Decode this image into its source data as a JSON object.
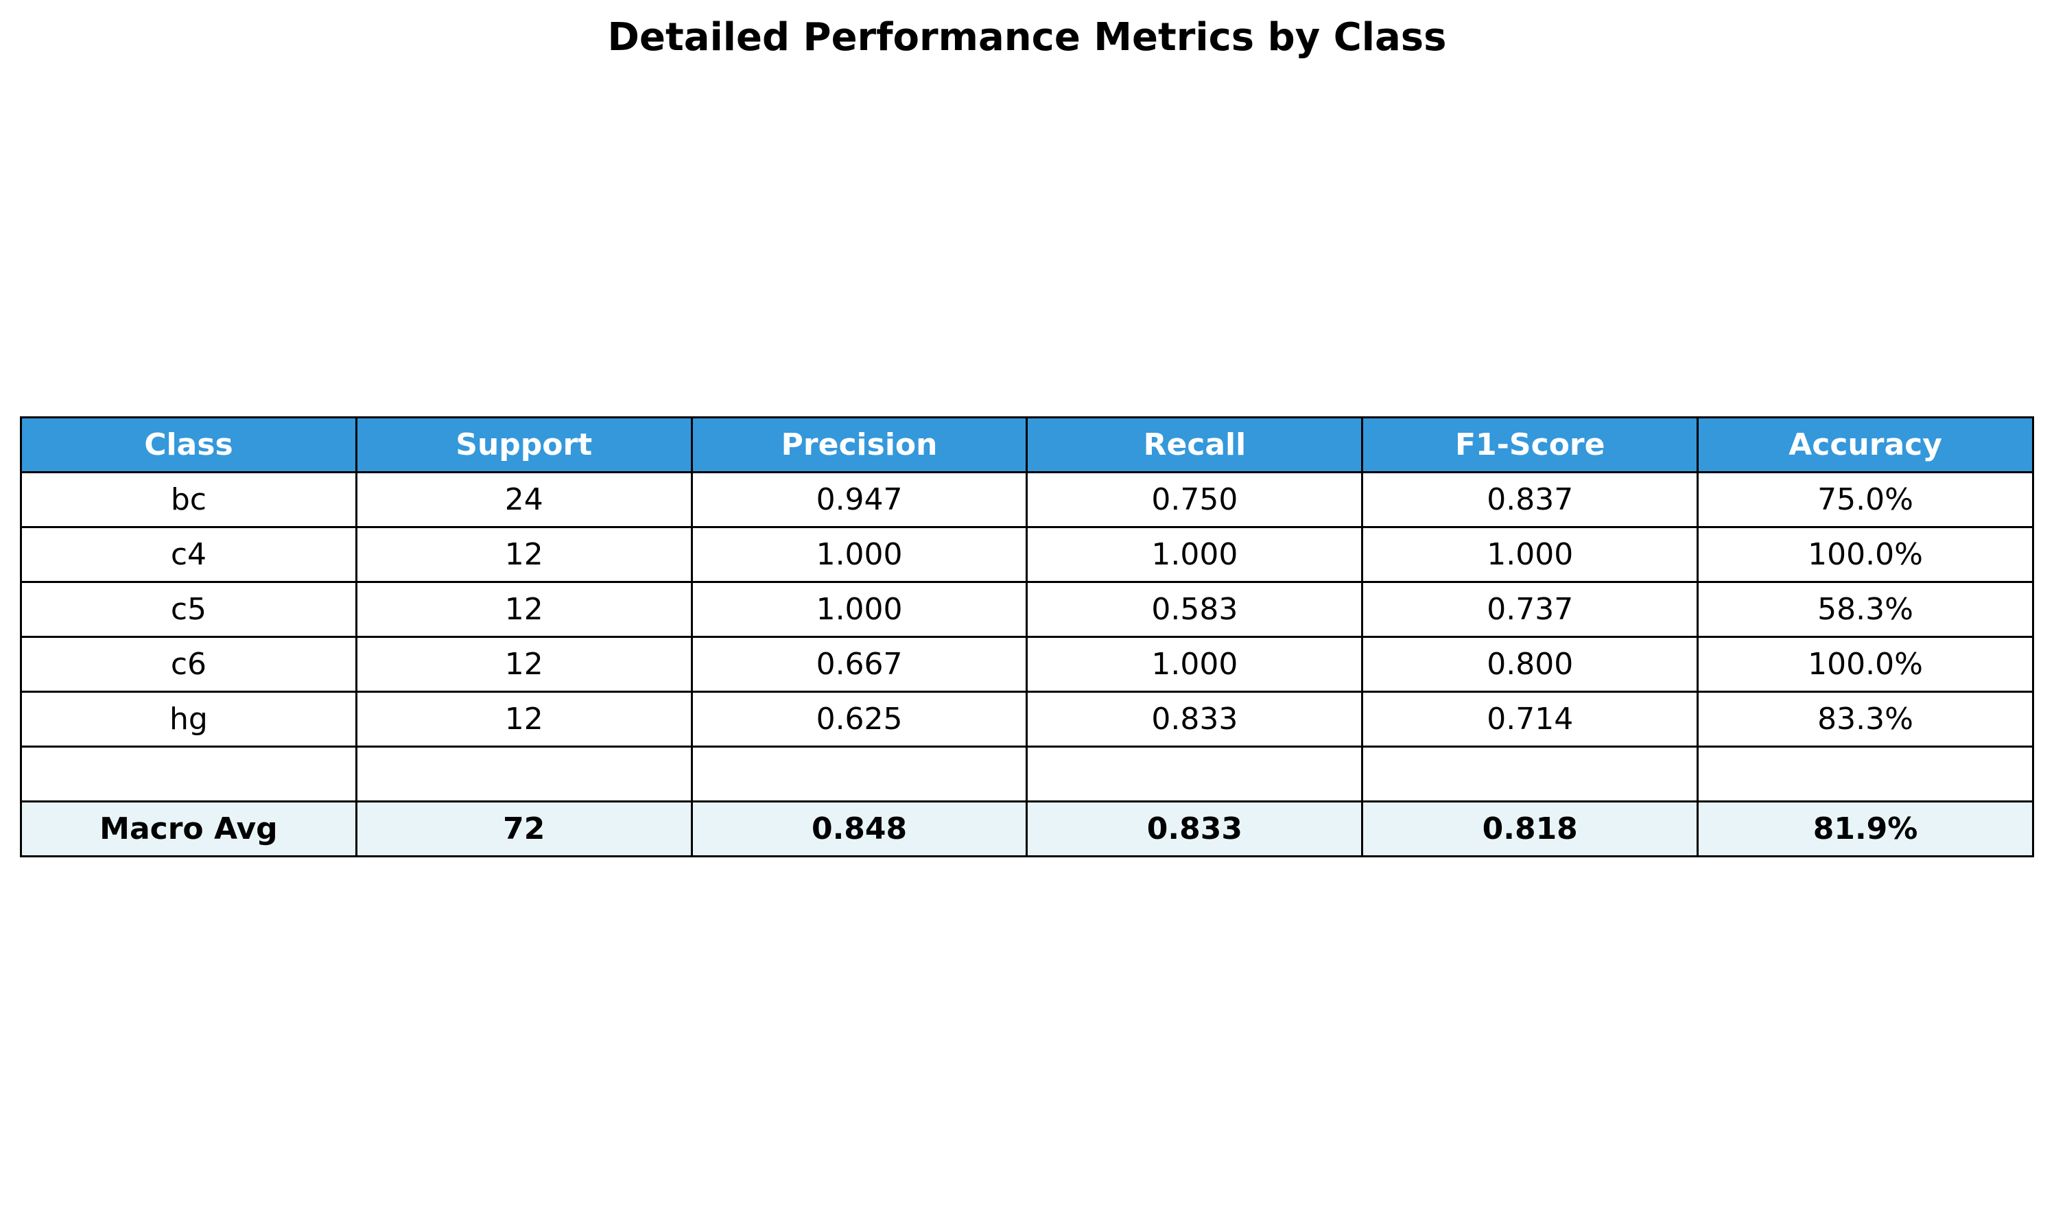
{
  "chart_data": {
    "type": "table",
    "title": "Detailed Performance Metrics by Class",
    "columns": [
      "Class",
      "Support",
      "Precision",
      "Recall",
      "F1-Score",
      "Accuracy"
    ],
    "rows": [
      [
        "bc",
        "24",
        "0.947",
        "0.750",
        "0.837",
        "75.0%"
      ],
      [
        "c4",
        "12",
        "1.000",
        "1.000",
        "1.000",
        "100.0%"
      ],
      [
        "c5",
        "12",
        "1.000",
        "0.583",
        "0.737",
        "58.3%"
      ],
      [
        "c6",
        "12",
        "0.667",
        "1.000",
        "0.800",
        "100.0%"
      ],
      [
        "hg",
        "12",
        "0.625",
        "0.833",
        "0.714",
        "83.3%"
      ],
      [
        "",
        "",
        "",
        "",
        "",
        ""
      ]
    ],
    "summary_row": [
      "Macro Avg",
      "72",
      "0.848",
      "0.833",
      "0.818",
      "81.9%"
    ]
  },
  "colors": {
    "header_background": "#3498db",
    "header_text": "#ffffff",
    "summary_background": "#e8f4f8",
    "border": "#000000"
  }
}
